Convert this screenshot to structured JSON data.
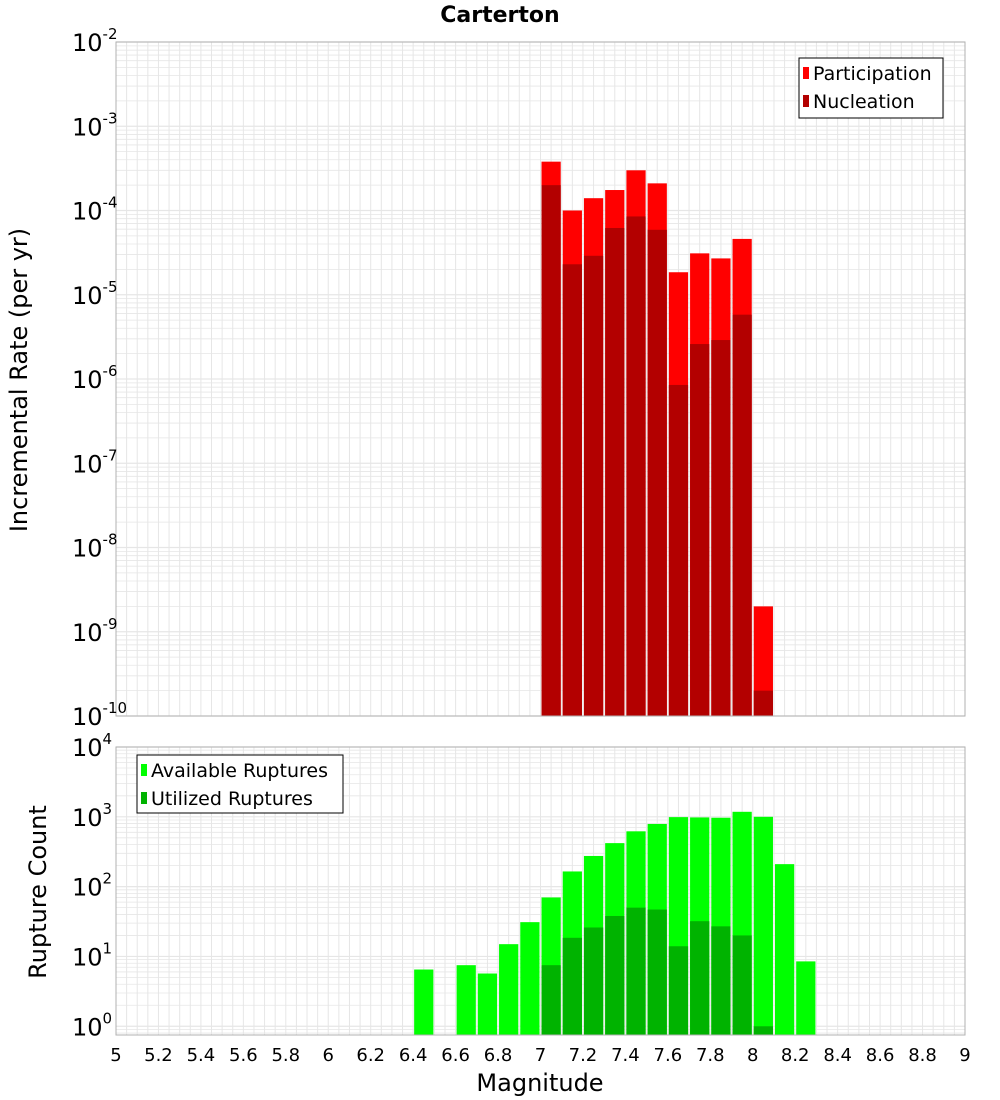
{
  "title": "Carterton",
  "xlabel": "Magnitude",
  "colors": {
    "participation": "#ff0000",
    "nucleation": "#b30000",
    "available": "#00ff00",
    "utilized": "#00b300",
    "grid": "#e6e6e6",
    "frame": "#b0b0b0"
  },
  "chart_data": [
    {
      "type": "bar",
      "panel": "top",
      "scale": "log",
      "ylabel": "Incremental Rate (per yr)",
      "ylim": [
        1e-10,
        0.01
      ],
      "xlim": [
        5,
        9
      ],
      "bin_width": 0.1,
      "grid": true,
      "legend_position": "top-right",
      "x": [
        7.05,
        7.15,
        7.25,
        7.35,
        7.45,
        7.55,
        7.65,
        7.75,
        7.85,
        7.95,
        8.05
      ],
      "series": [
        {
          "name": "Participation",
          "color": "#ff0000",
          "values": [
            0.00038,
            0.0001,
            0.00014,
            0.000175,
            0.0003,
            0.00021,
            1.85e-05,
            3.1e-05,
            2.7e-05,
            4.6e-05,
            2e-09
          ]
        },
        {
          "name": "Nucleation",
          "color": "#b30000",
          "values": [
            0.0002,
            2.3e-05,
            2.9e-05,
            6.2e-05,
            8.5e-05,
            5.9e-05,
            8.5e-07,
            2.6e-06,
            2.9e-06,
            5.8e-06,
            2e-10
          ]
        }
      ]
    },
    {
      "type": "bar",
      "panel": "bottom",
      "scale": "log",
      "ylabel": "Rupture Count",
      "ylim": [
        0.75,
        10000
      ],
      "xlim": [
        5,
        9
      ],
      "bin_width": 0.1,
      "grid": true,
      "legend_position": "top-left",
      "x": [
        6.45,
        6.65,
        6.75,
        6.85,
        6.95,
        7.05,
        7.15,
        7.25,
        7.35,
        7.45,
        7.55,
        7.65,
        7.75,
        7.85,
        7.95,
        8.05,
        8.15,
        8.25
      ],
      "series": [
        {
          "name": "Available Ruptures",
          "color": "#00ff00",
          "values": [
            6.5,
            7.5,
            5.7,
            15,
            31,
            70,
            165,
            275,
            420,
            620,
            790,
            990,
            980,
            970,
            1180,
            1000,
            210,
            8.5
          ]
        },
        {
          "name": "Utilized Ruptures",
          "color": "#00b300",
          "values": [
            0,
            0,
            0,
            0,
            0,
            7.5,
            18.5,
            26,
            38,
            50,
            47,
            14,
            32,
            27,
            20,
            1,
            0,
            0
          ]
        }
      ]
    }
  ],
  "x_ticks": [
    "5",
    "5.2",
    "5.4",
    "5.6",
    "5.8",
    "6",
    "6.2",
    "6.4",
    "6.6",
    "6.8",
    "7",
    "7.2",
    "7.4",
    "7.6",
    "7.8",
    "8",
    "8.2",
    "8.4",
    "8.6",
    "8.8",
    "9"
  ],
  "top_y_ticks": [
    {
      "base": "10",
      "exp": "-2"
    },
    {
      "base": "10",
      "exp": "-3"
    },
    {
      "base": "10",
      "exp": "-4"
    },
    {
      "base": "10",
      "exp": "-5"
    },
    {
      "base": "10",
      "exp": "-6"
    },
    {
      "base": "10",
      "exp": "-7"
    },
    {
      "base": "10",
      "exp": "-8"
    },
    {
      "base": "10",
      "exp": "-9"
    },
    {
      "base": "10",
      "exp": "-10"
    }
  ],
  "bottom_y_ticks": [
    {
      "base": "10",
      "exp": "4"
    },
    {
      "base": "10",
      "exp": "3"
    },
    {
      "base": "10",
      "exp": "2"
    },
    {
      "base": "10",
      "exp": "1"
    },
    {
      "base": "10",
      "exp": "0"
    }
  ]
}
